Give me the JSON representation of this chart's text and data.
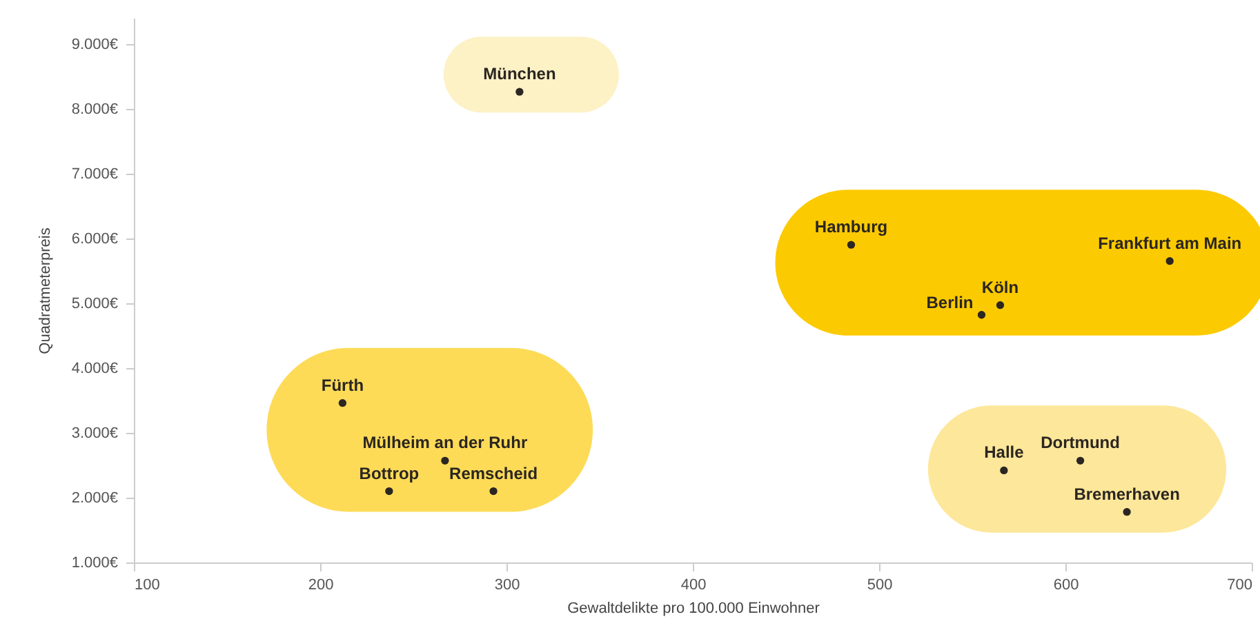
{
  "chart_data": {
    "type": "scatter",
    "xlabel": "Gewaltdelikte pro 100.000 Einwohner",
    "ylabel": "Quadratmeterpreis",
    "xlim": [
      100,
      700
    ],
    "xticks": [
      100,
      200,
      300,
      400,
      500,
      600,
      700
    ],
    "ylim": [
      1000,
      9400
    ],
    "yticks": [
      {
        "value": 1000,
        "label": "1.000€"
      },
      {
        "value": 2000,
        "label": "2.000€"
      },
      {
        "value": 3000,
        "label": "3.000€"
      },
      {
        "value": 4000,
        "label": "4.000€"
      },
      {
        "value": 5000,
        "label": "5.000€"
      },
      {
        "value": 6000,
        "label": "6.000€"
      },
      {
        "value": 7000,
        "label": "7.000€"
      },
      {
        "value": 8000,
        "label": "8.000€"
      },
      {
        "value": 9000,
        "label": "9.000€"
      }
    ],
    "grid": false,
    "marker": "circle",
    "series": [
      {
        "color": "#2b2621",
        "x": [
          307
        ],
        "values": [
          8260
        ]
      },
      {
        "color": "#2b2621",
        "x": [
          485,
          656,
          555,
          565
        ],
        "values": [
          5900,
          5650,
          4820,
          4970
        ]
      },
      {
        "color": "#2b2621",
        "x": [
          212,
          267,
          237,
          293
        ],
        "values": [
          3460,
          2570,
          2100,
          2100
        ]
      },
      {
        "color": "#2b2621",
        "x": [
          567,
          608,
          633
        ],
        "values": [
          2420,
          2570,
          1780
        ]
      }
    ],
    "annotations": [
      {
        "text": "München",
        "x": 307,
        "y": 8260
      },
      {
        "text": "Hamburg",
        "x": 485,
        "y": 5900
      },
      {
        "text": "Frankfurt am Main",
        "x": 656,
        "y": 5650
      },
      {
        "text": "Berlin",
        "x": 555,
        "y": 4820
      },
      {
        "text": "Köln",
        "x": 565,
        "y": 4970
      },
      {
        "text": "Fürth",
        "x": 212,
        "y": 3460
      },
      {
        "text": "Mülheim an der Ruhr",
        "x": 267,
        "y": 2570
      },
      {
        "text": "Bottrop",
        "x": 237,
        "y": 2100
      },
      {
        "text": "Remscheid",
        "x": 293,
        "y": 2100
      },
      {
        "text": "Halle",
        "x": 567,
        "y": 2420
      },
      {
        "text": "Dortmund",
        "x": 608,
        "y": 2570
      },
      {
        "text": "Bremerhaven",
        "x": 633,
        "y": 1780
      }
    ]
  }
}
